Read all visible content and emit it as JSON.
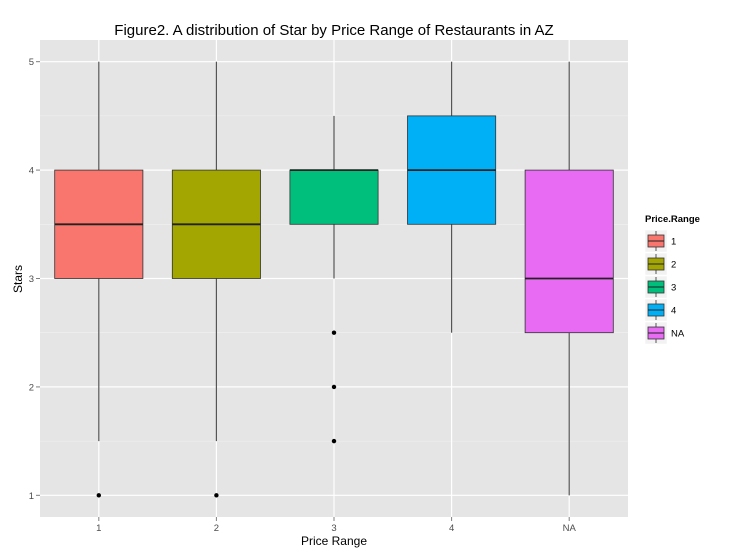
{
  "chart_data": {
    "type": "boxplot",
    "title": "Figure2. A distribution of Star by Price Range of Restaurants in AZ",
    "xlabel": "Price Range",
    "ylabel": "Stars",
    "categories": [
      "1",
      "2",
      "3",
      "4",
      "NA"
    ],
    "y_ticks": [
      1,
      2,
      3,
      4,
      5
    ],
    "ylim": [
      0.8,
      5.2
    ],
    "grid": true,
    "legend": {
      "title": "Price.Range",
      "placement": "right",
      "labels": [
        "1",
        "2",
        "3",
        "4",
        "NA"
      ]
    },
    "boxes": [
      {
        "category": "1",
        "min": 1.5,
        "q1": 3.0,
        "median": 3.5,
        "q3": 4.0,
        "max": 5.0,
        "outliers": [
          1.0
        ],
        "color": "#F8766D"
      },
      {
        "category": "2",
        "min": 1.5,
        "q1": 3.0,
        "median": 3.5,
        "q3": 4.0,
        "max": 5.0,
        "outliers": [
          1.0
        ],
        "color": "#A3A500"
      },
      {
        "category": "3",
        "min": 3.0,
        "q1": 3.5,
        "median": 4.0,
        "q3": 4.0,
        "max": 4.5,
        "outliers": [
          2.5,
          2.0,
          1.5
        ],
        "color": "#00BF7D"
      },
      {
        "category": "4",
        "min": 2.5,
        "q1": 3.5,
        "median": 4.0,
        "q3": 4.5,
        "max": 5.0,
        "outliers": [],
        "color": "#00B0F6"
      },
      {
        "category": "NA",
        "min": 1.0,
        "q1": 2.5,
        "median": 3.0,
        "q3": 4.0,
        "max": 5.0,
        "outliers": [],
        "color": "#E76BF3"
      }
    ]
  }
}
